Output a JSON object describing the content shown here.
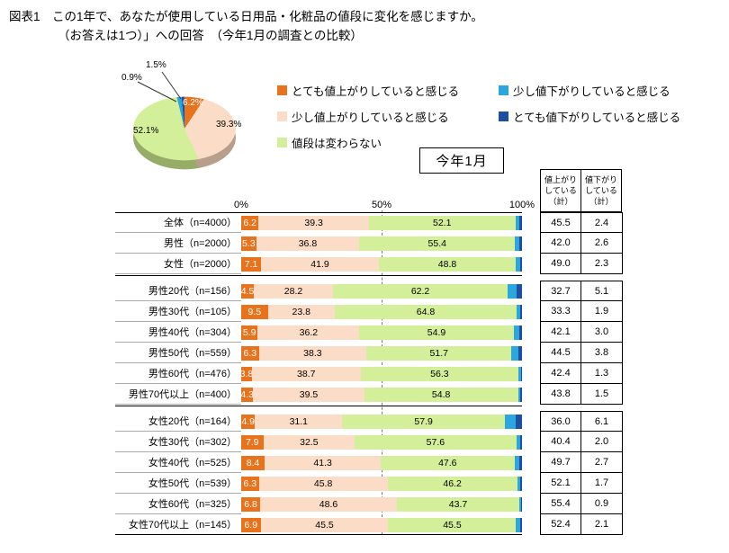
{
  "title": {
    "line1": "図表1　この1年で、あなたが使用している日用品・化粧品の値段に変化を感じますか。",
    "line2": "（お答えは1つ）」への回答　（今年1月の調査との比較）"
  },
  "period_label": "今年1月",
  "colors": {
    "very_up": "#e9731c",
    "slightly_up": "#fbdcc6",
    "no_change": "#d4ef9a",
    "slightly_down": "#2ba6de",
    "very_down": "#1e4fa0"
  },
  "legend": [
    {
      "key": "very_up",
      "label": "とても値上がりしていると感じる"
    },
    {
      "key": "slightly_down",
      "label": "少し値下がりしていると感じる"
    },
    {
      "key": "slightly_up",
      "label": "少し値上がりしていると感じる"
    },
    {
      "key": "very_down",
      "label": "とても値下がりしていると感じる"
    },
    {
      "key": "no_change",
      "label": "値段は変わらない"
    }
  ],
  "pie_labels": {
    "very_up": "6.2%",
    "slightly_up": "39.3%",
    "no_change": "52.1%",
    "slightly_down": "1.5%",
    "very_down": "0.9%"
  },
  "axis_ticks": [
    "0%",
    "50%",
    "100%"
  ],
  "table_headers": [
    "値上がりしている（計）",
    "値下がりしている（計）"
  ],
  "chart_data": [
    {
      "type": "pie",
      "labels": [
        "とても値上がりしていると感じる",
        "少し値上がりしていると感じる",
        "値段は変わらない",
        "少し値下がりしていると感じる",
        "とても値下がりしていると感じる"
      ],
      "values": [
        6.2,
        39.3,
        52.1,
        1.5,
        0.9
      ]
    },
    {
      "type": "bar",
      "stacked": true,
      "orientation": "horizontal",
      "xlim": [
        0,
        100
      ],
      "x_ticks": [
        "0%",
        "50%",
        "100%"
      ],
      "series_names": [
        "とても値上がりしていると感じる",
        "少し値上がりしていると感じる",
        "値段は変わらない",
        "少し値下がりしていると感じる",
        "とても値下がりしていると感じる"
      ],
      "group_starts": [
        3,
        9
      ],
      "rows": [
        {
          "category": "全体（n=4000）",
          "very_up": 6.2,
          "slightly_up": 39.3,
          "no_change": 52.1,
          "up_total": 45.5,
          "down_total": 2.4
        },
        {
          "category": "男性（n=2000）",
          "very_up": 5.3,
          "slightly_up": 36.8,
          "no_change": 55.4,
          "up_total": 42.0,
          "down_total": 2.6
        },
        {
          "category": "女性（n=2000）",
          "very_up": 7.1,
          "slightly_up": 41.9,
          "no_change": 48.8,
          "up_total": 49.0,
          "down_total": 2.3
        },
        {
          "category": "男性20代（n=156）",
          "very_up": 4.5,
          "slightly_up": 28.2,
          "no_change": 62.2,
          "up_total": 32.7,
          "down_total": 5.1
        },
        {
          "category": "男性30代（n=105）",
          "very_up": 9.5,
          "slightly_up": 23.8,
          "no_change": 64.8,
          "up_total": 33.3,
          "down_total": 1.9
        },
        {
          "category": "男性40代（n=304）",
          "very_up": 5.9,
          "slightly_up": 36.2,
          "no_change": 54.9,
          "up_total": 42.1,
          "down_total": 3.0
        },
        {
          "category": "男性50代（n=559）",
          "very_up": 6.3,
          "slightly_up": 38.3,
          "no_change": 51.7,
          "up_total": 44.5,
          "down_total": 3.8
        },
        {
          "category": "男性60代（n=476）",
          "very_up": 3.8,
          "slightly_up": 38.7,
          "no_change": 56.3,
          "up_total": 42.4,
          "down_total": 1.3
        },
        {
          "category": "男性70代以上（n=400）",
          "very_up": 4.3,
          "slightly_up": 39.5,
          "no_change": 54.8,
          "up_total": 43.8,
          "down_total": 1.5
        },
        {
          "category": "女性20代（n=164）",
          "very_up": 4.9,
          "slightly_up": 31.1,
          "no_change": 57.9,
          "up_total": 36.0,
          "down_total": 6.1
        },
        {
          "category": "女性30代（n=302）",
          "very_up": 7.9,
          "slightly_up": 32.5,
          "no_change": 57.6,
          "up_total": 40.4,
          "down_total": 2.0
        },
        {
          "category": "女性40代（n=525）",
          "very_up": 8.4,
          "slightly_up": 41.3,
          "no_change": 47.6,
          "up_total": 49.7,
          "down_total": 2.7
        },
        {
          "category": "女性50代（n=539）",
          "very_up": 6.3,
          "slightly_up": 45.8,
          "no_change": 46.2,
          "up_total": 52.1,
          "down_total": 1.7
        },
        {
          "category": "女性60代（n=325）",
          "very_up": 6.8,
          "slightly_up": 48.6,
          "no_change": 43.7,
          "up_total": 55.4,
          "down_total": 0.9
        },
        {
          "category": "女性70代以上（n=145）",
          "very_up": 6.9,
          "slightly_up": 45.5,
          "no_change": 45.5,
          "up_total": 52.4,
          "down_total": 2.1
        }
      ]
    }
  ]
}
